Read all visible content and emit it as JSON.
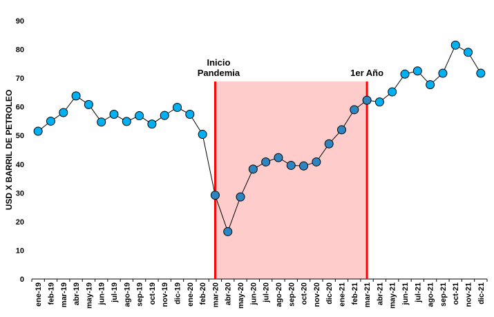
{
  "chart_data": {
    "type": "line",
    "title": "",
    "xlabel": "",
    "ylabel": "USD X BARRIL DE PETROLEO",
    "ylim": [
      0,
      90
    ],
    "yticks": [
      0,
      10,
      20,
      30,
      40,
      50,
      60,
      70,
      80,
      90
    ],
    "grid": false,
    "legend": "none",
    "categories": [
      "ene-19",
      "feb-19",
      "mar-19",
      "abr-19",
      "may-19",
      "jun-19",
      "jul-19",
      "ago-19",
      "sep-19",
      "oct-19",
      "nov-19",
      "dic-19",
      "ene-20",
      "feb-20",
      "mar-20",
      "abr-20",
      "may-20",
      "jun-20",
      "jul-20",
      "ago-20",
      "sep-20",
      "oct-20",
      "nov-20",
      "dic-20",
      "ene-21",
      "feb-21",
      "mar-21",
      "abr-21",
      "may-21",
      "jun-21",
      "jul-21",
      "ago-21",
      "sep-21",
      "oct-21",
      "nov-21",
      "dic-21"
    ],
    "series": [
      {
        "values": [
          51.5,
          55.0,
          58.0,
          63.8,
          60.8,
          54.7,
          57.4,
          54.9,
          56.9,
          54.0,
          57.0,
          59.8,
          57.4,
          50.4,
          29.2,
          16.5,
          28.6,
          38.3,
          40.8,
          42.3,
          39.6,
          39.4,
          40.8,
          47.1,
          52.0,
          59.0,
          62.3,
          61.7,
          65.2,
          71.4,
          72.5,
          67.7,
          71.7,
          81.5,
          79.0,
          71.7
        ]
      }
    ],
    "highlight_region": {
      "start": "mar-20",
      "end": "mar-21",
      "color": "#ffcccc"
    },
    "annotations": [
      {
        "lines": [
          "Inicio",
          "Pandemia"
        ],
        "at": "mar-20"
      },
      {
        "lines": [
          "1er Año"
        ],
        "at": "mar-21"
      }
    ],
    "colors": {
      "marker_normal": "#00b0f0",
      "marker_highlight": "#2e86c1",
      "marker_stroke": "#000000",
      "line": "#000000",
      "vline": "#ff0000",
      "region_fill": "#ffcccc"
    }
  }
}
